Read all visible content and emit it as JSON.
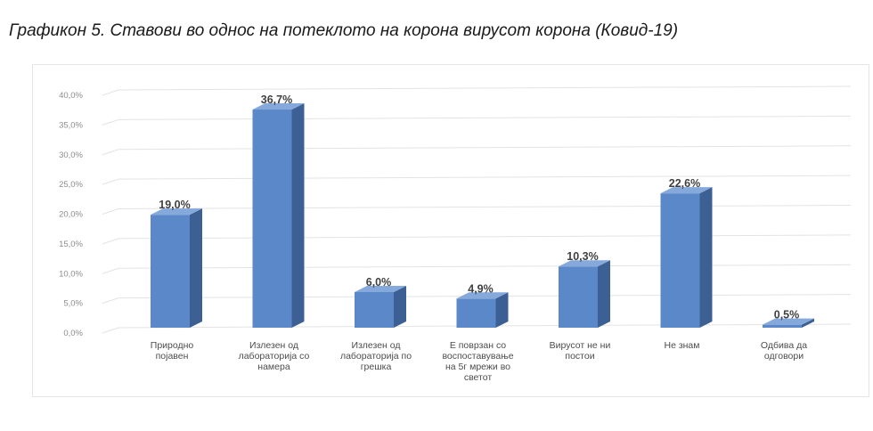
{
  "caption": "Графикон 5. Ставови во однос на потеклото на корона вирусот корона (Ковид-19)",
  "colors": {
    "bar_front": "#5b88c8",
    "bar_side": "#3c5f94",
    "bar_top": "#86a9dc",
    "grid": "#e3e3e3"
  },
  "chart_data": {
    "type": "bar",
    "title": "Графикон 5. Ставови во однос на потеклото на корона вирусот корона (Ковид-19)",
    "xlabel": "",
    "ylabel": "",
    "ylim": [
      0,
      40
    ],
    "ytick_step": 5,
    "grid": true,
    "legend": "none",
    "y_tick_labels": [
      "0,0%",
      "5,0%",
      "10,0%",
      "15,0%",
      "20,0%",
      "25,0%",
      "30,0%",
      "35,0%",
      "40,0%"
    ],
    "categories": [
      [
        "Природно",
        "појавен"
      ],
      [
        "Излезен од",
        "лабораторија со",
        "намера"
      ],
      [
        "Излезен од",
        "лабораторија по",
        "грешка"
      ],
      [
        "Е поврзан со",
        "воспоставување",
        "на 5г мрежи во",
        "светот"
      ],
      [
        "Вирусот не ни",
        "постои"
      ],
      [
        "Не знам"
      ],
      [
        "Одбива да",
        "одговори"
      ]
    ],
    "values": [
      19.0,
      36.7,
      6.0,
      4.9,
      10.3,
      22.6,
      0.5
    ],
    "value_labels": [
      "19,0%",
      "36,7%",
      "6,0%",
      "4,9%",
      "10,3%",
      "22,6%",
      "0,5%"
    ]
  }
}
